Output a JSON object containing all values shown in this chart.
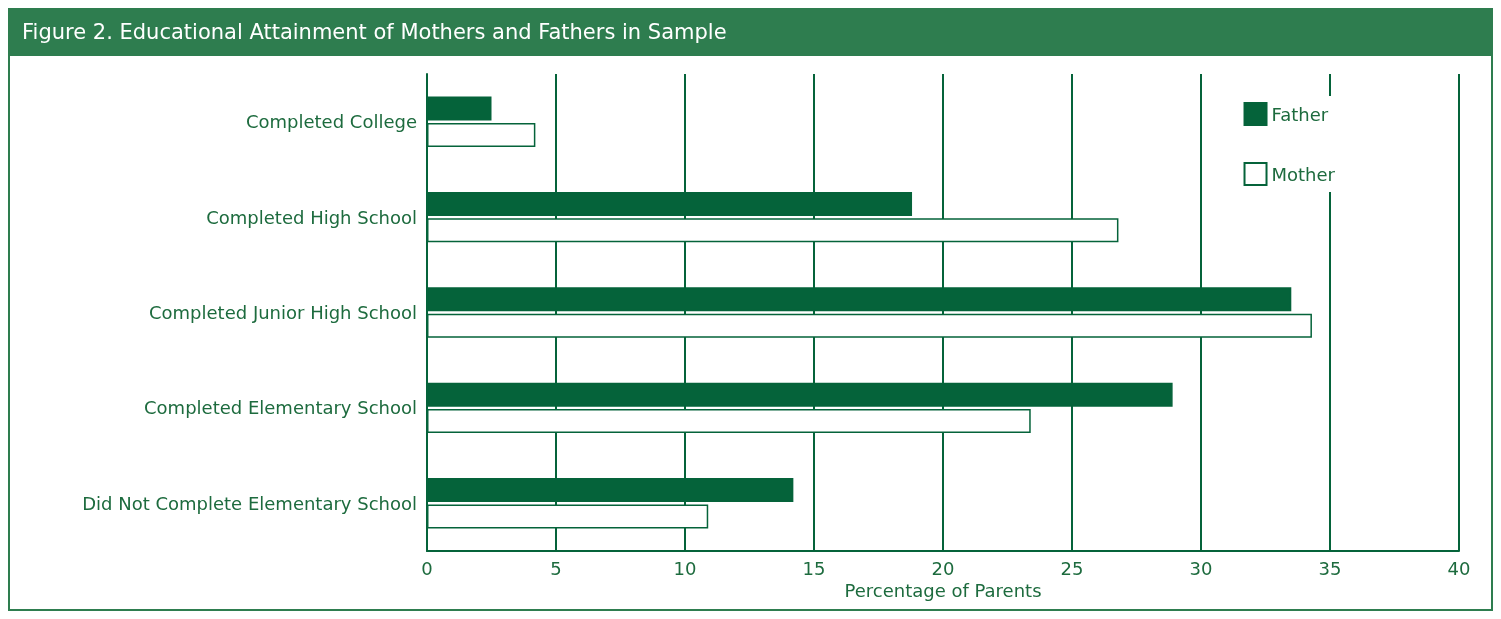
{
  "chart_data": {
    "type": "bar",
    "orientation": "horizontal",
    "title": "Figure 2. Educational Attainment of Mothers and Fathers in Sample",
    "xlabel": "Percentage of Parents",
    "categories": [
      "Completed College",
      "Completed High School",
      "Completed Junior High School",
      "Completed Elementary School",
      "Did Not Complete Elementary School"
    ],
    "series": [
      {
        "name": "Father",
        "color": "#05633a",
        "values": [
          2.5,
          18.8,
          33.5,
          28.9,
          14.2
        ]
      },
      {
        "name": "Mother",
        "color": "#ffffff",
        "values": [
          4.2,
          26.8,
          34.3,
          23.4,
          10.9
        ]
      }
    ],
    "xlim": [
      0,
      40
    ],
    "xticks": [
      0,
      5,
      10,
      15,
      20,
      25,
      30,
      35,
      40
    ],
    "grid": "x",
    "legend": "top right"
  }
}
